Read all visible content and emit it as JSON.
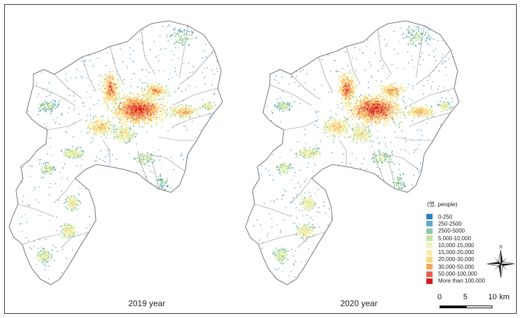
{
  "maps": [
    {
      "caption": "2019 year"
    },
    {
      "caption": "2020 year"
    }
  ],
  "legend": {
    "title": "(명, people)",
    "classes": [
      {
        "label": "0-250",
        "color": "#2f7fbf"
      },
      {
        "label": "250-2500",
        "color": "#5fa6c7"
      },
      {
        "label": "2500-5000",
        "color": "#8fc7a8"
      },
      {
        "label": "5,000-10,000",
        "color": "#c5e3a4"
      },
      {
        "label": "10,000-15,000",
        "color": "#ecf5c0"
      },
      {
        "label": "15,000-20,000",
        "color": "#fbeeaa"
      },
      {
        "label": "20,000-30,000",
        "color": "#fbd47f"
      },
      {
        "label": "30,000-50,000",
        "color": "#f6a65e"
      },
      {
        "label": "50,000-100,000",
        "color": "#e8604a"
      },
      {
        "label": "More than 100,000",
        "color": "#d7191c"
      }
    ]
  },
  "compass": {
    "north_label": "N"
  },
  "scale_bar": {
    "ticks": [
      "0",
      "5",
      "10"
    ],
    "unit": "km"
  }
}
